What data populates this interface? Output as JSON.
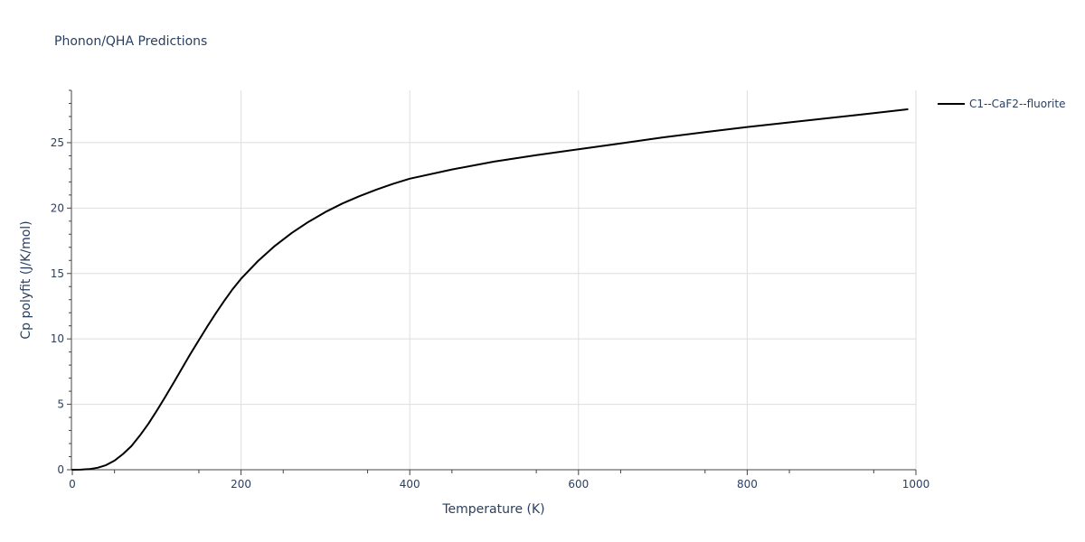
{
  "chart_data": {
    "type": "line",
    "title": "Phonon/QHA Predictions",
    "xlabel": "Temperature (K)",
    "ylabel": "Cp polyfit (J/K/mol)",
    "xlim": [
      0,
      1000
    ],
    "ylim": [
      0,
      29
    ],
    "x_ticks": [
      0,
      200,
      400,
      600,
      800,
      1000
    ],
    "y_ticks": [
      0,
      5,
      10,
      15,
      20,
      25
    ],
    "grid": true,
    "legend_position": "top-right, outside plot",
    "series": [
      {
        "name": "C1--CaF2--fluorite",
        "color": "#000000",
        "x": [
          0,
          10,
          20,
          30,
          40,
          50,
          60,
          70,
          80,
          90,
          100,
          110,
          120,
          130,
          140,
          150,
          160,
          170,
          180,
          190,
          200,
          220,
          240,
          260,
          280,
          300,
          320,
          340,
          360,
          380,
          400,
          450,
          500,
          550,
          600,
          650,
          700,
          750,
          800,
          850,
          900,
          950,
          990
        ],
        "y": [
          0,
          0.01,
          0.05,
          0.15,
          0.35,
          0.7,
          1.2,
          1.8,
          2.6,
          3.5,
          4.5,
          5.55,
          6.65,
          7.75,
          8.85,
          9.9,
          10.95,
          11.95,
          12.9,
          13.8,
          14.6,
          15.95,
          17.1,
          18.1,
          18.95,
          19.7,
          20.35,
          20.9,
          21.4,
          21.85,
          22.25,
          22.95,
          23.55,
          24.05,
          24.5,
          24.95,
          25.4,
          25.8,
          26.2,
          26.55,
          26.9,
          27.25,
          27.55
        ]
      }
    ]
  }
}
